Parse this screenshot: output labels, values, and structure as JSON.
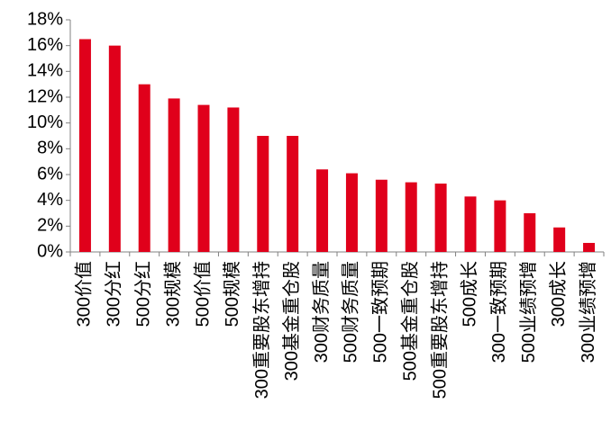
{
  "chart_data": {
    "type": "bar",
    "categories": [
      "300价值",
      "300分红",
      "500分红",
      "300规模",
      "500价值",
      "500规模",
      "300重要股东增持",
      "300基金重仓股",
      "300财务质量",
      "500财务质量",
      "500一致预期",
      "500基金重仓股",
      "500重要股东增持",
      "500成长",
      "300一致预期",
      "500业绩预增",
      "300成长",
      "300业绩预增"
    ],
    "values": [
      16.5,
      16.0,
      13.0,
      11.9,
      11.4,
      11.2,
      9.0,
      9.0,
      6.4,
      6.1,
      5.6,
      5.4,
      5.3,
      4.3,
      4.0,
      3.0,
      1.9,
      0.7
    ],
    "color": "#e0001b",
    "ylim": [
      0,
      18
    ],
    "yticks": [
      {
        "value": 0,
        "label": "0%"
      },
      {
        "value": 2,
        "label": "2%"
      },
      {
        "value": 4,
        "label": "4%"
      },
      {
        "value": 6,
        "label": "6%"
      },
      {
        "value": 8,
        "label": "8%"
      },
      {
        "value": 10,
        "label": "10%"
      },
      {
        "value": 12,
        "label": "12%"
      },
      {
        "value": 14,
        "label": "14%"
      },
      {
        "value": 16,
        "label": "16%"
      },
      {
        "value": 18,
        "label": "18%"
      }
    ],
    "grid": false
  }
}
